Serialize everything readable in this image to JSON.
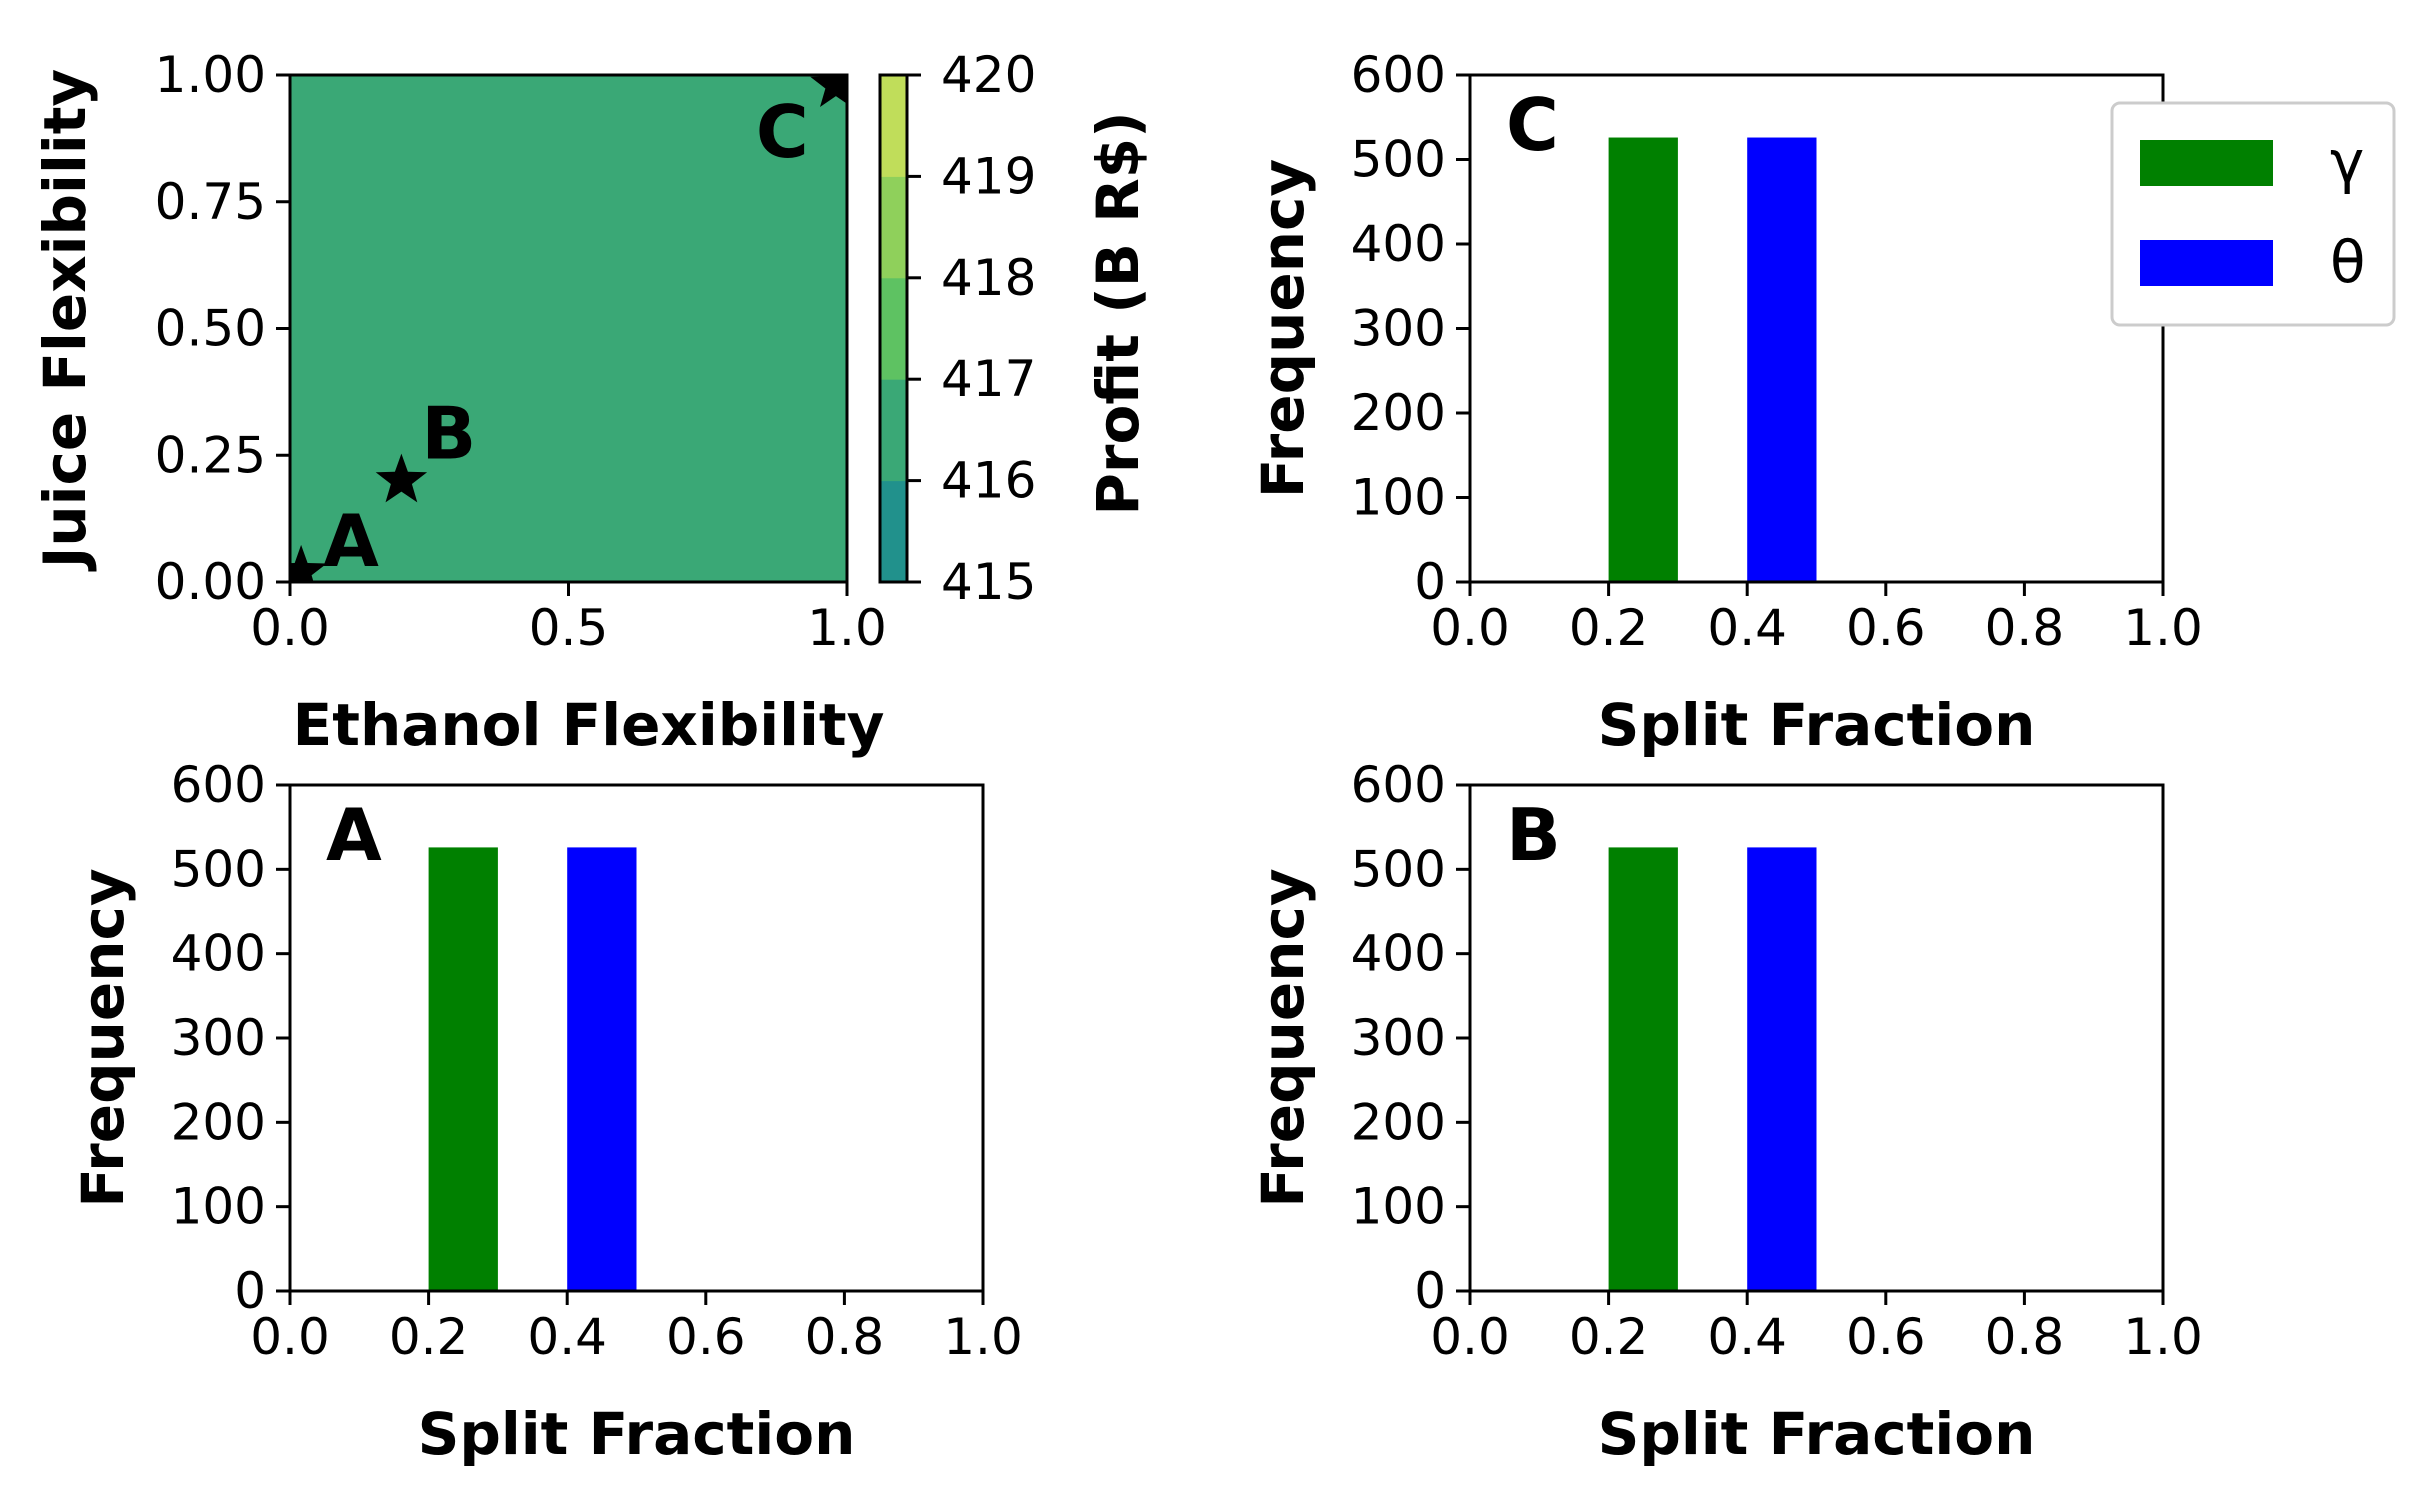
{
  "chart_data": [
    {
      "id": "contour",
      "type": "heatmap",
      "xlabel": "Ethanol Flexibility",
      "ylabel": "Juice Flexibility",
      "xlim": [
        0.0,
        1.0
      ],
      "ylim": [
        0.0,
        1.0
      ],
      "xticks": [
        "0.0",
        "0.5",
        "1.0"
      ],
      "yticks": [
        "0.00",
        "0.25",
        "0.50",
        "0.75",
        "1.00"
      ],
      "fill_value": 416.4,
      "colorbar": {
        "label": "Profit (B R$)",
        "ticks": [
          "415",
          "416",
          "417",
          "418",
          "419",
          "420"
        ],
        "range": [
          415,
          420
        ],
        "colors": [
          "#21918c",
          "#3aa876",
          "#5ec262",
          "#8fd05b",
          "#c0dd5a",
          "#f3ef60"
        ]
      },
      "points": [
        {
          "label": "A",
          "x": 0.02,
          "y": 0.02
        },
        {
          "label": "B",
          "x": 0.2,
          "y": 0.2
        },
        {
          "label": "C",
          "x": 0.98,
          "y": 0.98
        }
      ]
    },
    {
      "id": "hist-C",
      "type": "bar",
      "panel_label": "C",
      "xlabel": "Split Fraction",
      "ylabel": "Frequency",
      "xlim": [
        0.0,
        1.0
      ],
      "ylim": [
        0,
        600
      ],
      "xticks": [
        "0.0",
        "0.2",
        "0.4",
        "0.6",
        "0.8",
        "1.0"
      ],
      "yticks": [
        "0",
        "100",
        "200",
        "300",
        "400",
        "500",
        "600"
      ],
      "series": [
        {
          "name": "γ",
          "color": "#008000",
          "bins": [
            [
              0.2,
              0.3
            ]
          ],
          "values": [
            526
          ]
        },
        {
          "name": "θ",
          "color": "#0000ff",
          "bins": [
            [
              0.4,
              0.5
            ]
          ],
          "values": [
            526
          ]
        }
      ],
      "legend": "outside-right"
    },
    {
      "id": "hist-A",
      "type": "bar",
      "panel_label": "A",
      "xlabel": "Split Fraction",
      "ylabel": "Frequency",
      "xlim": [
        0.0,
        1.0
      ],
      "ylim": [
        0,
        600
      ],
      "xticks": [
        "0.0",
        "0.2",
        "0.4",
        "0.6",
        "0.8",
        "1.0"
      ],
      "yticks": [
        "0",
        "100",
        "200",
        "300",
        "400",
        "500",
        "600"
      ],
      "series": [
        {
          "name": "γ",
          "color": "#008000",
          "bins": [
            [
              0.2,
              0.3
            ]
          ],
          "values": [
            526
          ]
        },
        {
          "name": "θ",
          "color": "#0000ff",
          "bins": [
            [
              0.4,
              0.5
            ]
          ],
          "values": [
            526
          ]
        }
      ]
    },
    {
      "id": "hist-B",
      "type": "bar",
      "panel_label": "B",
      "xlabel": "Split Fraction",
      "ylabel": "Frequency",
      "xlim": [
        0.0,
        1.0
      ],
      "ylim": [
        0,
        600
      ],
      "xticks": [
        "0.0",
        "0.2",
        "0.4",
        "0.6",
        "0.8",
        "1.0"
      ],
      "yticks": [
        "0",
        "100",
        "200",
        "300",
        "400",
        "500",
        "600"
      ],
      "series": [
        {
          "name": "γ",
          "color": "#008000",
          "bins": [
            [
              0.2,
              0.3
            ]
          ],
          "values": [
            526
          ]
        },
        {
          "name": "θ",
          "color": "#0000ff",
          "bins": [
            [
              0.4,
              0.5
            ]
          ],
          "values": [
            526
          ]
        }
      ]
    }
  ]
}
